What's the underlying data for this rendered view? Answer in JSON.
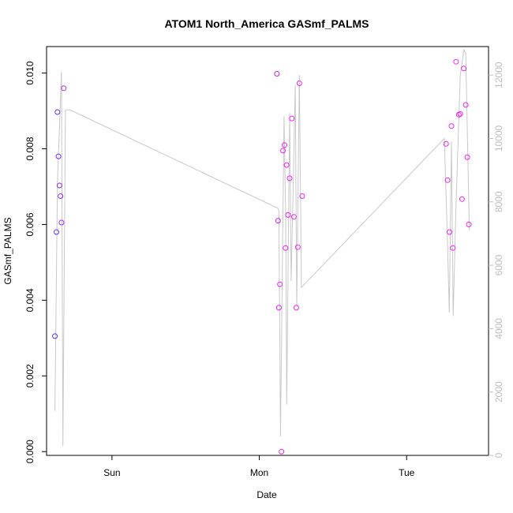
{
  "chart_data": {
    "type": "scatter",
    "title": "ATOM1 North_America GASmf_PALMS",
    "xlabel": "Date",
    "ylabel": "GASmf_PALMS",
    "x_unit": "days",
    "xlim": [
      0.0,
      3.0
    ],
    "ylim": [
      -0.0001,
      0.0107
    ],
    "ylim_right": [
      0,
      12900
    ],
    "y_ticks": [
      "0.000",
      "0.002",
      "0.004",
      "0.006",
      "0.008",
      "0.010"
    ],
    "y_ticks_right": [
      "0",
      "2000",
      "4000",
      "6000",
      "8000",
      "10000",
      "12000"
    ],
    "x_ticks": [
      {
        "value": 0.444,
        "label": "Sun"
      },
      {
        "value": 1.444,
        "label": "Mon"
      },
      {
        "value": 2.444,
        "label": "Tue"
      }
    ],
    "grid": false,
    "colors": {
      "points_start": "#5533ee",
      "points_end": "#ee22ee",
      "line": "#c8c8c8",
      "right_axis": "#bdbdbd"
    },
    "points": [
      {
        "x": 0.057,
        "y": 0.00305
      },
      {
        "x": 0.067,
        "y": 0.0058
      },
      {
        "x": 0.074,
        "y": 0.00897
      },
      {
        "x": 0.081,
        "y": 0.0078
      },
      {
        "x": 0.088,
        "y": 0.00703
      },
      {
        "x": 0.095,
        "y": 0.00675
      },
      {
        "x": 0.101,
        "y": 0.00605
      },
      {
        "x": 0.117,
        "y": 0.0096
      },
      {
        "x": 1.564,
        "y": 0.00998
      },
      {
        "x": 1.571,
        "y": 0.0061
      },
      {
        "x": 1.577,
        "y": 0.0038
      },
      {
        "x": 1.584,
        "y": 0.00442
      },
      {
        "x": 1.595,
        "y": 0.0
      },
      {
        "x": 1.605,
        "y": 0.00795
      },
      {
        "x": 1.615,
        "y": 0.0081
      },
      {
        "x": 1.622,
        "y": 0.00538
      },
      {
        "x": 1.629,
        "y": 0.00757
      },
      {
        "x": 1.639,
        "y": 0.00625
      },
      {
        "x": 1.65,
        "y": 0.00722
      },
      {
        "x": 1.665,
        "y": 0.0088
      },
      {
        "x": 1.679,
        "y": 0.0062
      },
      {
        "x": 1.695,
        "y": 0.0038
      },
      {
        "x": 1.705,
        "y": 0.0054
      },
      {
        "x": 1.716,
        "y": 0.00973
      },
      {
        "x": 1.735,
        "y": 0.00675
      },
      {
        "x": 2.712,
        "y": 0.00813
      },
      {
        "x": 2.722,
        "y": 0.00717
      },
      {
        "x": 2.735,
        "y": 0.0058
      },
      {
        "x": 2.748,
        "y": 0.0086
      },
      {
        "x": 2.758,
        "y": 0.00538
      },
      {
        "x": 2.78,
        "y": 0.0103
      },
      {
        "x": 2.798,
        "y": 0.0089
      },
      {
        "x": 2.808,
        "y": 0.00892
      },
      {
        "x": 2.82,
        "y": 0.00667
      },
      {
        "x": 2.832,
        "y": 0.01012
      },
      {
        "x": 2.845,
        "y": 0.00916
      },
      {
        "x": 2.856,
        "y": 0.00778
      },
      {
        "x": 2.866,
        "y": 0.006
      }
    ],
    "line_series": [
      {
        "x": 0.057,
        "y": 1400
      },
      {
        "x": 0.074,
        "y": 8600
      },
      {
        "x": 0.101,
        "y": 12100
      },
      {
        "x": 0.111,
        "y": 300
      },
      {
        "x": 0.128,
        "y": 10900
      },
      {
        "x": 0.16,
        "y": 10900
      },
      {
        "x": 1.57,
        "y": 7800
      },
      {
        "x": 1.577,
        "y": 7700
      },
      {
        "x": 1.588,
        "y": 600
      },
      {
        "x": 1.612,
        "y": 10700
      },
      {
        "x": 1.623,
        "y": 7500
      },
      {
        "x": 1.63,
        "y": 1600
      },
      {
        "x": 1.65,
        "y": 10800
      },
      {
        "x": 1.66,
        "y": 5500
      },
      {
        "x": 1.672,
        "y": 8000
      },
      {
        "x": 1.688,
        "y": 11700
      },
      {
        "x": 1.698,
        "y": 4700
      },
      {
        "x": 1.716,
        "y": 12000
      },
      {
        "x": 1.73,
        "y": 5300
      },
      {
        "x": 2.7,
        "y": 10000
      },
      {
        "x": 2.72,
        "y": 7000
      },
      {
        "x": 2.734,
        "y": 4500
      },
      {
        "x": 2.748,
        "y": 9900
      },
      {
        "x": 2.76,
        "y": 4400
      },
      {
        "x": 2.78,
        "y": 8000
      },
      {
        "x": 2.808,
        "y": 12000
      },
      {
        "x": 2.833,
        "y": 12800
      },
      {
        "x": 2.845,
        "y": 12700
      },
      {
        "x": 2.87,
        "y": 7100
      }
    ]
  }
}
